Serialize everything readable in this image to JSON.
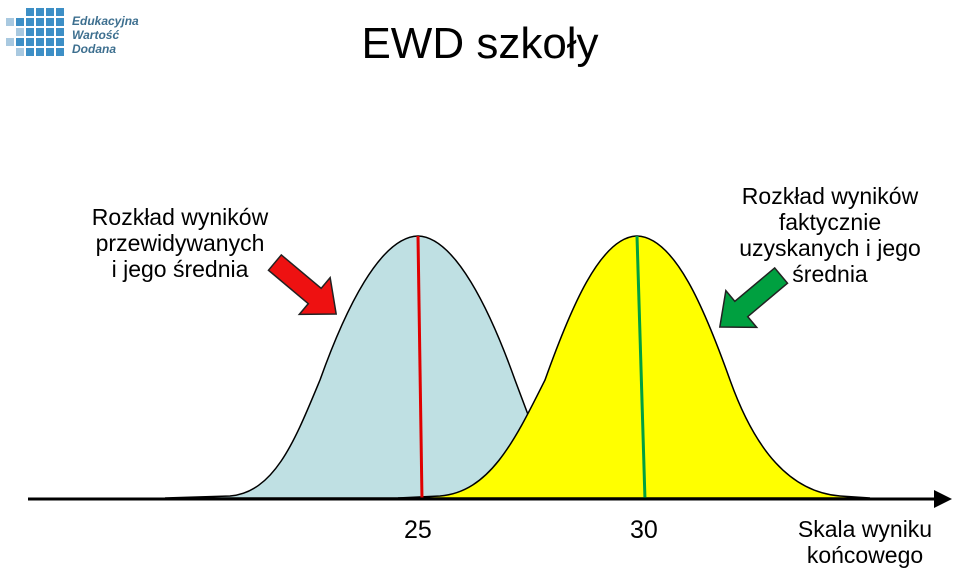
{
  "logo": {
    "line1": "Edukacyjna",
    "line2": "Wartość",
    "line3": "Dodana"
  },
  "title": "EWD szkoły",
  "left_label": [
    "Rozkład wyników",
    "przewidywanych",
    "i jego średnia"
  ],
  "right_label": [
    "Rozkład wyników",
    "faktycznie",
    "uzyskanych i jego",
    "średnia"
  ],
  "ticks": [
    "25",
    "30"
  ],
  "axis_label": [
    "Skala wyniku",
    "końcowego"
  ],
  "colors": {
    "predicted_fill": "#bfe0e3",
    "actual_fill": "#ffff00",
    "predicted_mean": "#e00000",
    "actual_mean": "#00a040",
    "left_arrow": "#ee1111",
    "right_arrow": "#00a040"
  }
}
